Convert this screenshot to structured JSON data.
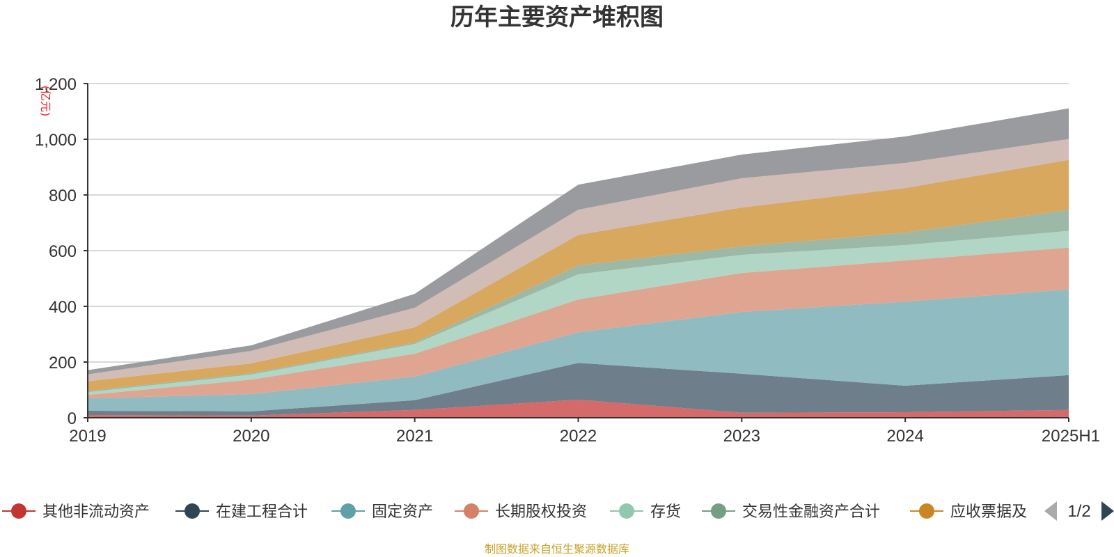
{
  "chart_data": {
    "type": "area",
    "stacked": true,
    "title": "历年主要资产堆积图",
    "y_unit": "(亿元)",
    "ylim": [
      0,
      1200
    ],
    "y_ticks": [
      "0",
      "200",
      "400",
      "600",
      "800",
      "1,000",
      "1,200"
    ],
    "y_tick_values": [
      0,
      200,
      400,
      600,
      800,
      1000,
      1200
    ],
    "grid": true,
    "categories": [
      "2019",
      "2020",
      "2021",
      "2022",
      "2023",
      "2024",
      "2025H1"
    ],
    "series": [
      {
        "name": "其他非流动资产",
        "color": "#c23531",
        "fill": "#d46a6a",
        "values": [
          10,
          8,
          28,
          65,
          18,
          20,
          28
        ]
      },
      {
        "name": "在建工程合计",
        "color": "#2f4554",
        "fill": "#6e7e8a",
        "values": [
          15,
          15,
          35,
          132,
          140,
          95,
          125
        ]
      },
      {
        "name": "固定资产",
        "color": "#61a0a8",
        "fill": "#90bbc1",
        "values": [
          45,
          62,
          85,
          110,
          222,
          302,
          308
        ]
      },
      {
        "name": "长期股权投资",
        "color": "#d48265",
        "fill": "#e0a591",
        "values": [
          12,
          52,
          82,
          118,
          140,
          148,
          150
        ]
      },
      {
        "name": "存货",
        "color": "#91c7ae",
        "fill": "#b1d6c5",
        "values": [
          10,
          18,
          35,
          90,
          65,
          55,
          60
        ]
      },
      {
        "name": "交易性金融资产合计",
        "color": "#749f83",
        "fill": "#9cb8a6",
        "values": [
          4,
          5,
          5,
          32,
          30,
          45,
          75
        ]
      },
      {
        "name": "应收票据及",
        "color": "#ca8622",
        "fill": "#d8a85f",
        "values": [
          35,
          35,
          55,
          110,
          140,
          160,
          180
        ]
      },
      {
        "name": "",
        "color": "#bda29a",
        "fill": "#d2bcb6",
        "values": [
          25,
          45,
          70,
          90,
          105,
          90,
          75
        ]
      },
      {
        "name": "",
        "color": "#6e7074",
        "fill": "#9a9b9e",
        "values": [
          15,
          20,
          50,
          90,
          85,
          95,
          110
        ]
      }
    ],
    "legend": {
      "position": "bottom",
      "visible_items": [
        "其他非流动资产",
        "在建工程合计",
        "固定资产",
        "长期股权投资",
        "存货",
        "交易性金融资产合计",
        "应收票据及"
      ],
      "page": "1/2"
    },
    "source": "制图数据来自恒生聚源数据库"
  }
}
